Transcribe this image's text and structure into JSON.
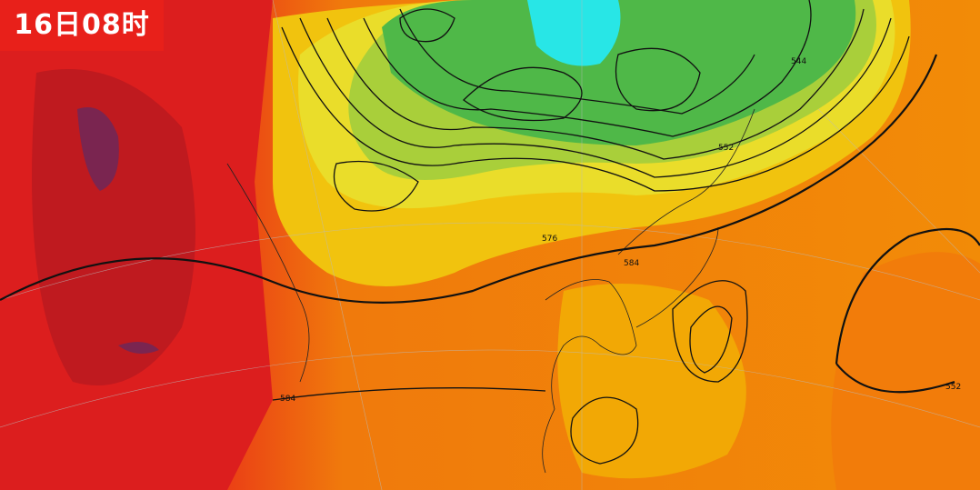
{
  "header": {
    "time_label": "16日08时"
  },
  "contour_labels": [
    "584",
    "576",
    "584",
    "552",
    "544",
    "552"
  ]
}
